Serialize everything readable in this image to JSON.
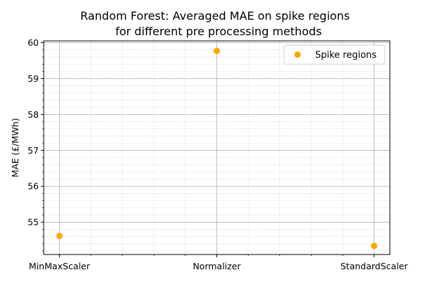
{
  "chart_data": {
    "type": "scatter",
    "title_line1": "Random Forest: Averaged MAE on spike regions",
    "title_line2": "for different pre processing methods",
    "xlabel": "",
    "ylabel": "MAE (£/MWh)",
    "categories": [
      "MinMaxScaler",
      "Normalizer",
      "StandardScaler"
    ],
    "series": [
      {
        "name": "Spike regions",
        "color": "#ffa500",
        "values": [
          54.62,
          59.77,
          54.34
        ]
      }
    ],
    "ylim": [
      54.1,
      60.05
    ],
    "yticks": [
      55,
      56,
      57,
      58,
      59,
      60
    ],
    "grid": true,
    "minor_grid": true,
    "legend": "upper-right"
  }
}
